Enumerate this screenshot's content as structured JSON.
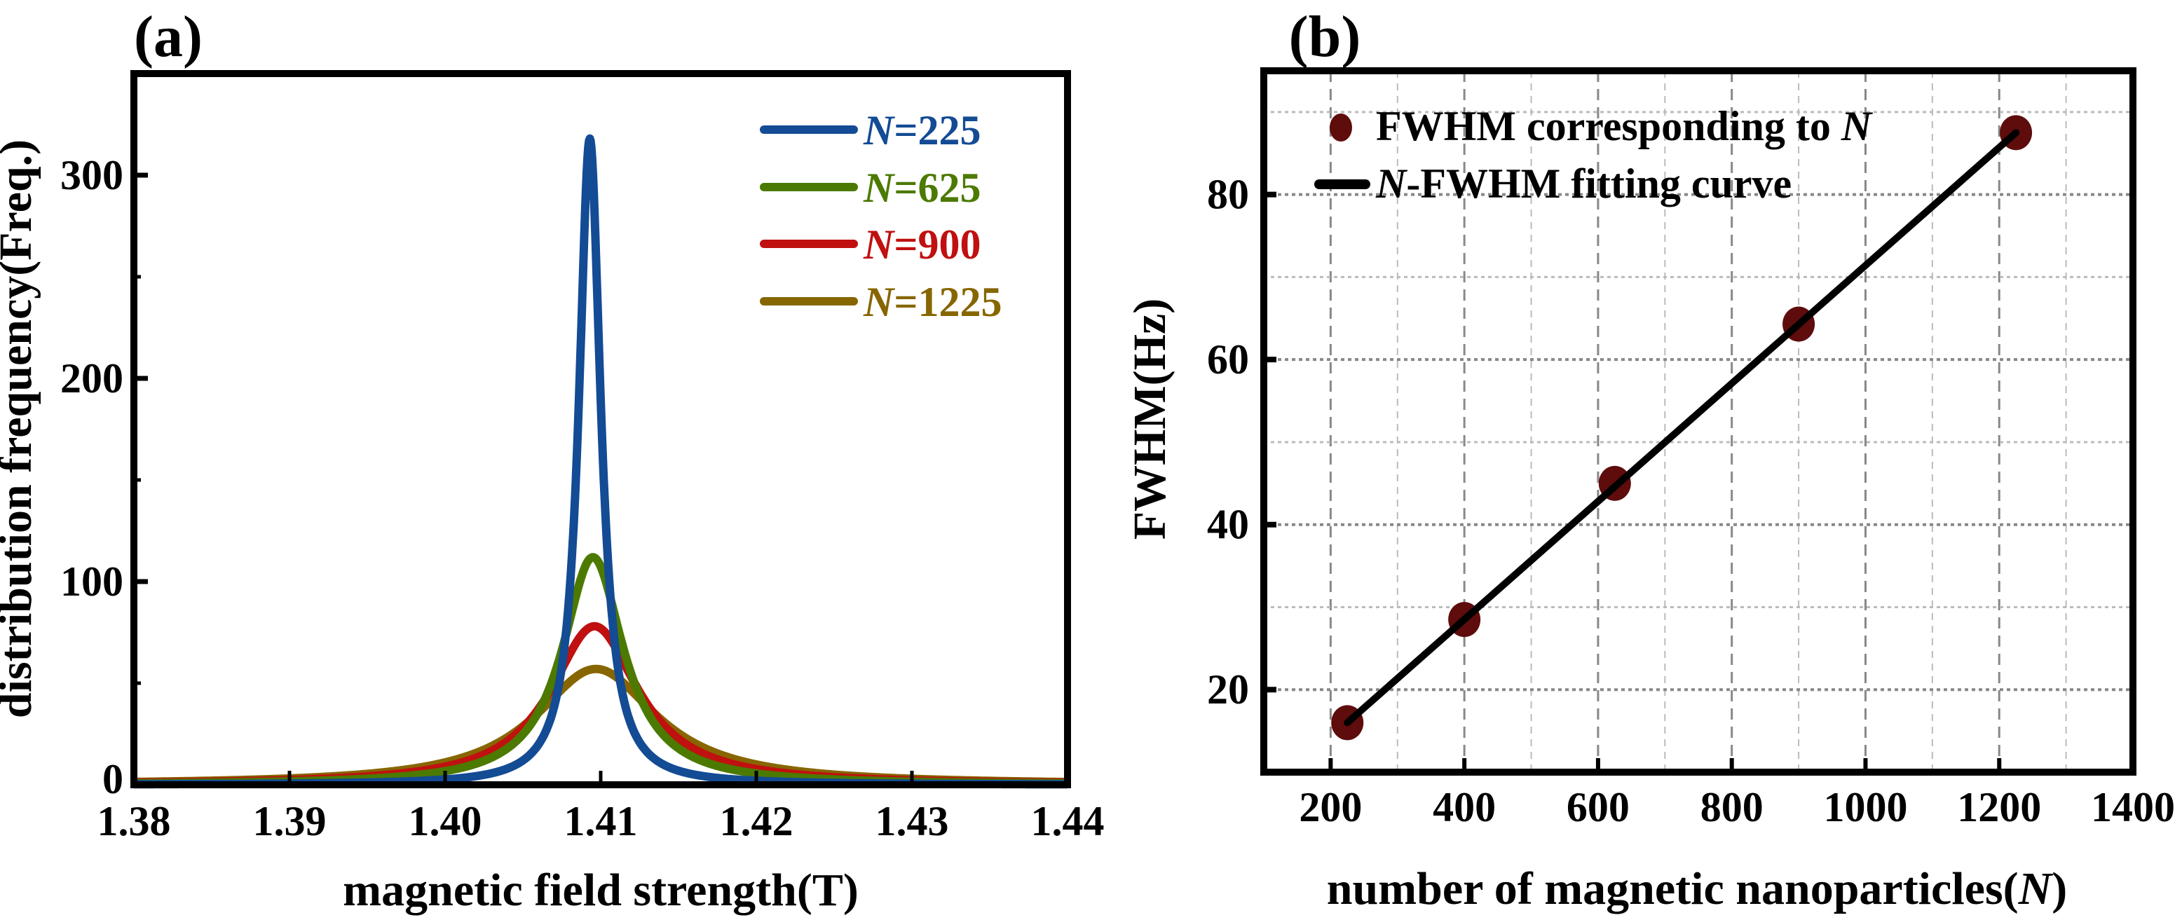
{
  "chart_data": [
    {
      "panel_label": "(a)",
      "type": "line",
      "xlabel": "magnetic field strength(T)",
      "ylabel": "distribution frequency(Freq.)",
      "xlim": [
        1.38,
        1.44
      ],
      "ylim": [
        0,
        350
      ],
      "xticks": [
        "1.38",
        "1.39",
        "1.40",
        "1.41",
        "1.42",
        "1.43",
        "1.44"
      ],
      "yticks": [
        "0",
        "100",
        "200",
        "300"
      ],
      "grid": false,
      "legend_position": "top-right",
      "series": [
        {
          "name_italic": "N",
          "name_rest": "=225",
          "color": "#134b94",
          "model": "lorentzian",
          "center": 1.4093,
          "peak": 318,
          "fwhm": 0.0017
        },
        {
          "name_italic": "N",
          "name_rest": "=625",
          "color": "#4c7a00",
          "model": "lorentzian",
          "center": 1.4095,
          "peak": 112,
          "fwhm": 0.0048
        },
        {
          "name_italic": "N",
          "name_rest": "=900",
          "color": "#c01010",
          "model": "lorentzian",
          "center": 1.4096,
          "peak": 78,
          "fwhm": 0.0069
        },
        {
          "name_italic": "N",
          "name_rest": "=1225",
          "color": "#876600",
          "model": "lorentzian",
          "center": 1.4097,
          "peak": 57,
          "fwhm": 0.0095
        }
      ]
    },
    {
      "panel_label": "(b)",
      "type": "scatter",
      "xlabel_main": "number of magnetic nanoparticles(",
      "xlabel_italic": "N",
      "xlabel_end": ")",
      "ylabel": "FWHM(Hz)",
      "xlim": [
        100,
        1400
      ],
      "ylim": [
        10,
        95
      ],
      "xticks": [
        "200",
        "400",
        "600",
        "800",
        "1000",
        "1200",
        "1400"
      ],
      "yticks": [
        "20",
        "40",
        "60",
        "80"
      ],
      "grid": true,
      "legend_position": "top-left",
      "points": {
        "name": "FWHM corresponding to",
        "name_italic": "N",
        "color": "#5e0c0c",
        "x": [
          225,
          400,
          625,
          900,
          1225
        ],
        "y": [
          16,
          28.5,
          45,
          64.3,
          87.5
        ]
      },
      "fit": {
        "name_italic": "N",
        "name_rest": "-FWHM fitting curve",
        "color": "#000000",
        "x": [
          225,
          1225
        ],
        "y": [
          16,
          87.5
        ]
      }
    }
  ]
}
